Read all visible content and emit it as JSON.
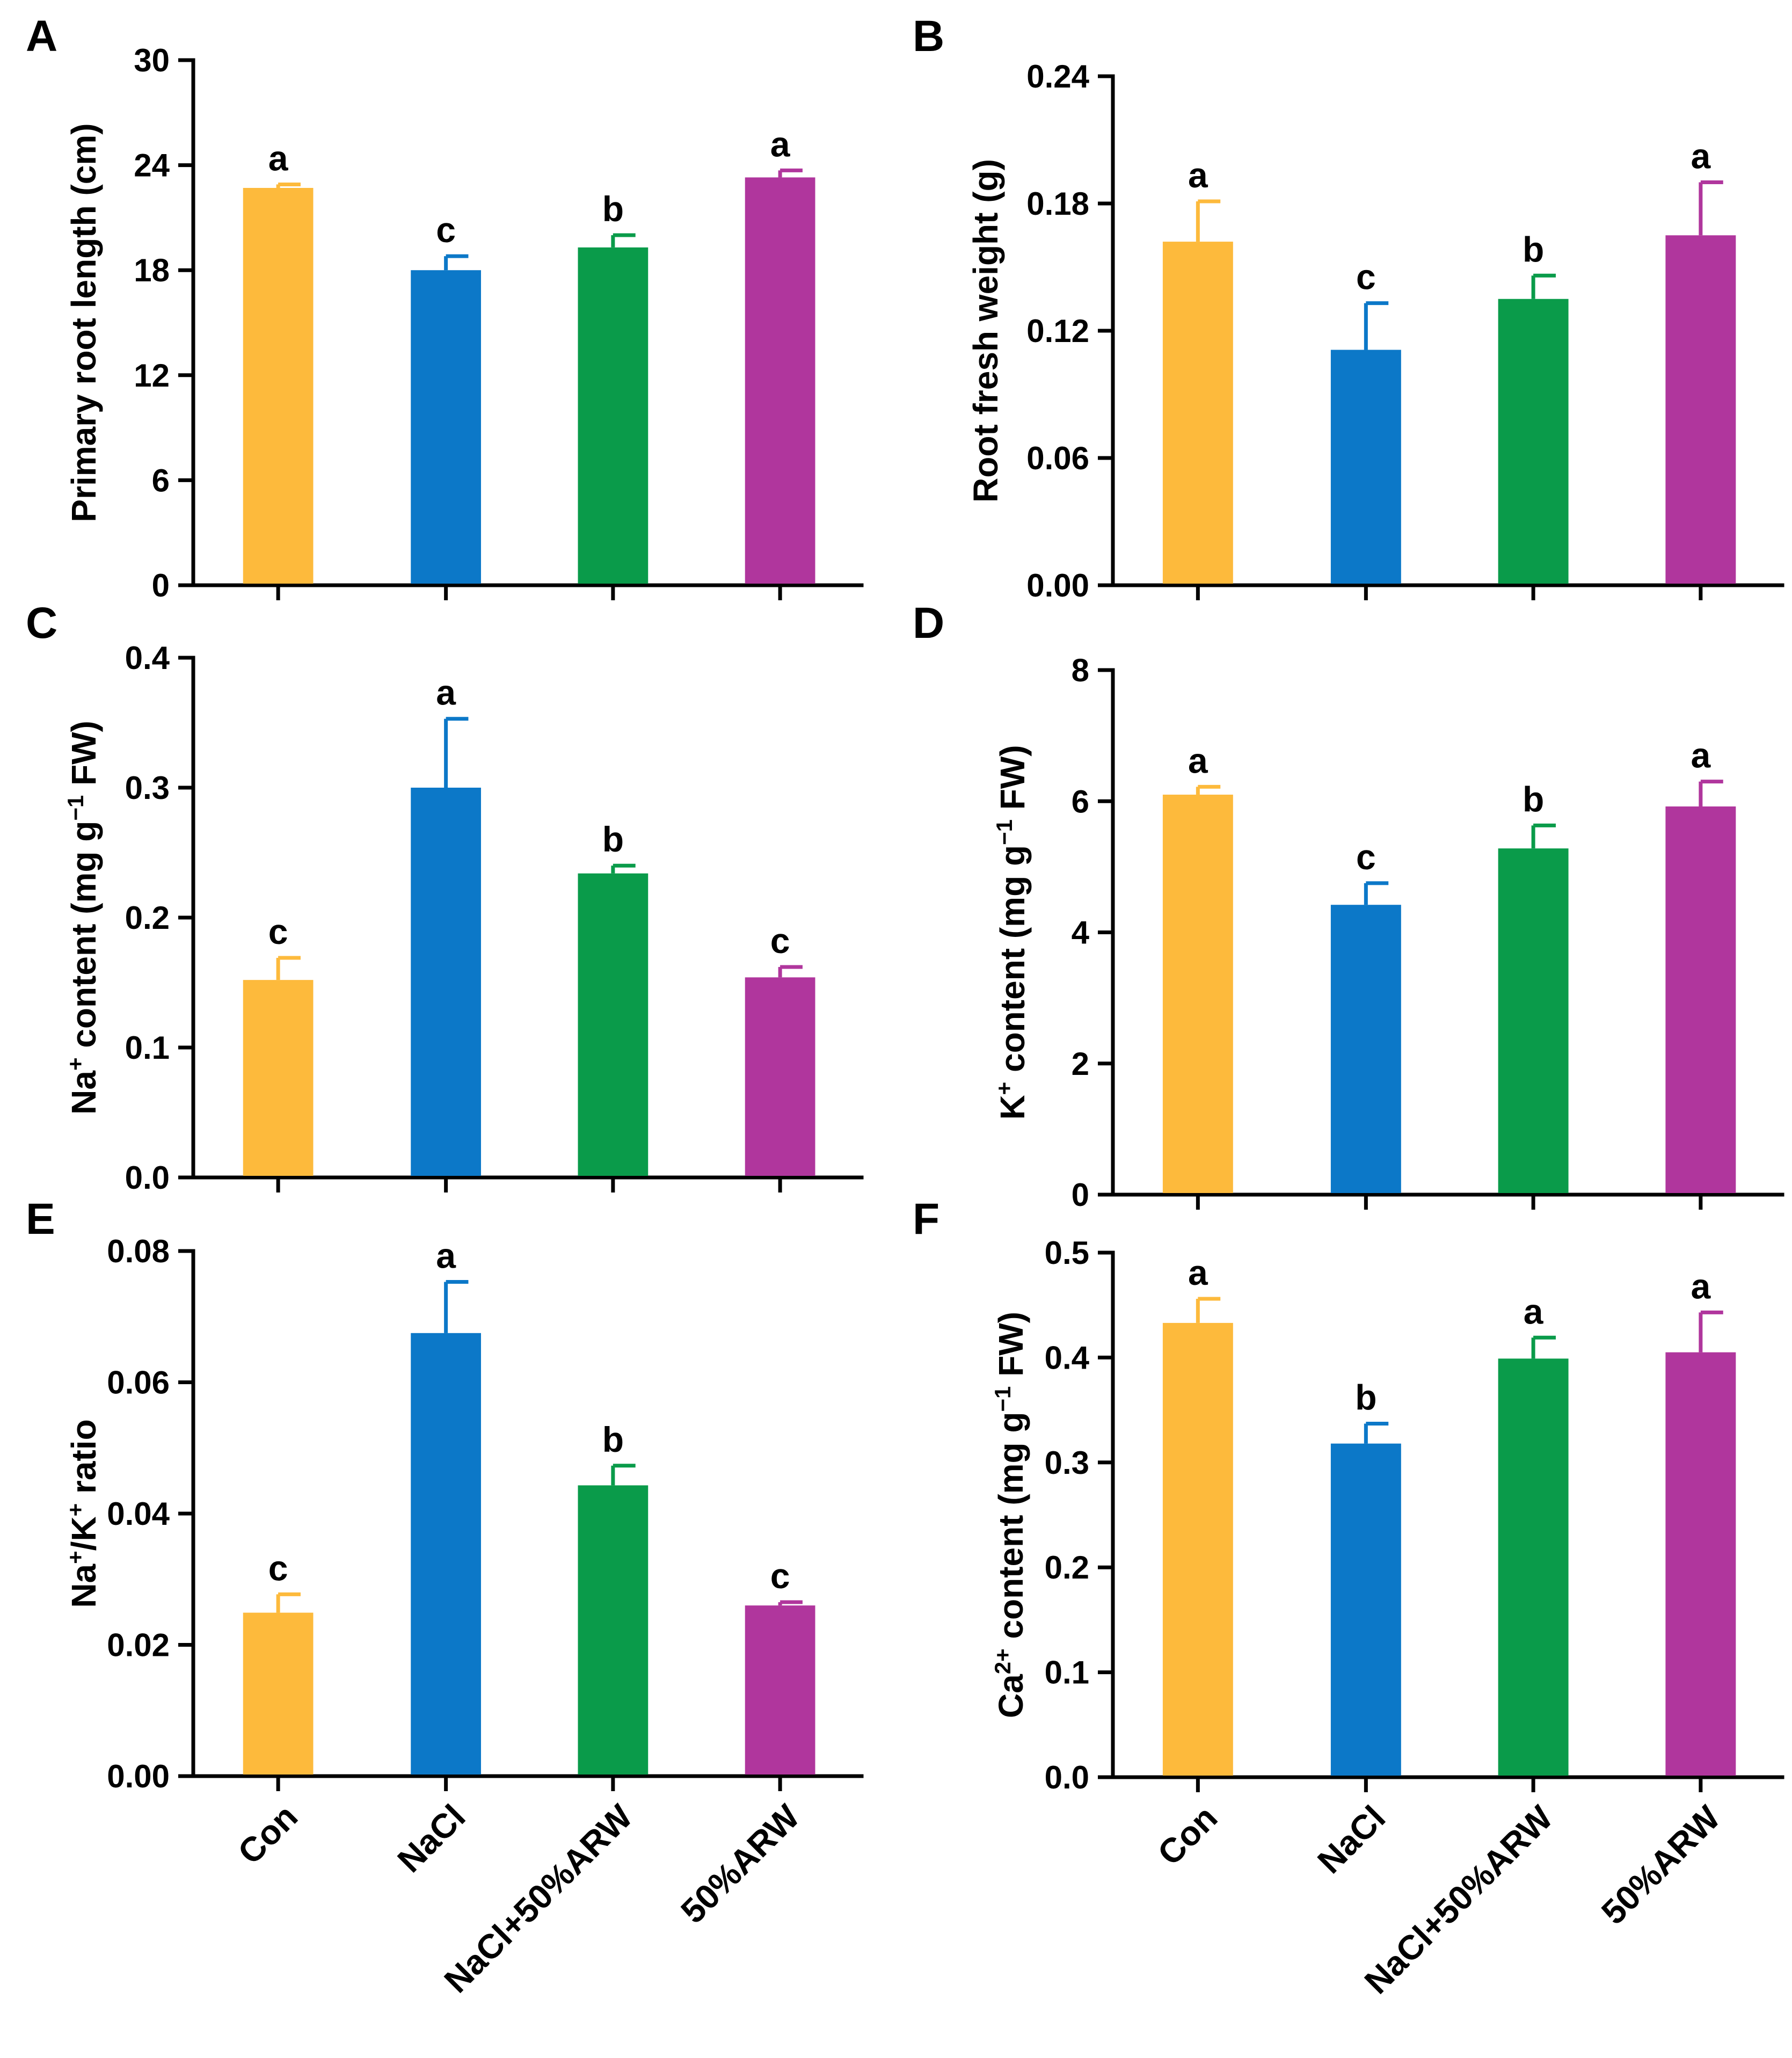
{
  "colors": {
    "Con": "#FDBA3C",
    "NaCl": "#0C78C8",
    "NaCl+50%ARW": "#0A9B4A",
    "50%ARW": "#B0369D",
    "axis": "#000000"
  },
  "chart_data": [
    {
      "panel": "A",
      "type": "bar",
      "categories": [
        "Con",
        "NaCl",
        "NaCl+50%ARW",
        "50%ARW"
      ],
      "values": [
        22.7,
        18.0,
        19.3,
        23.3
      ],
      "errors": [
        0.2,
        0.8,
        0.7,
        0.4
      ],
      "significance": [
        "a",
        "c",
        "b",
        "a"
      ],
      "ylabel": "Primary root length (cm)",
      "ylim": [
        0,
        30
      ],
      "yticks": [
        "0",
        "6",
        "12",
        "18",
        "24",
        "30"
      ]
    },
    {
      "panel": "B",
      "type": "bar",
      "categories": [
        "Con",
        "NaCl",
        "NaCl+50%ARW",
        "50%ARW"
      ],
      "values": [
        0.162,
        0.111,
        0.135,
        0.165
      ],
      "errors": [
        0.019,
        0.022,
        0.011,
        0.025
      ],
      "significance": [
        "a",
        "c",
        "b",
        "a"
      ],
      "ylabel": "Root fresh weight (g)",
      "ylim": [
        0,
        0.24
      ],
      "yticks": [
        "0.00",
        "0.06",
        "0.12",
        "0.18",
        "0.24"
      ]
    },
    {
      "panel": "C",
      "type": "bar",
      "categories": [
        "Con",
        "NaCl",
        "NaCl+50%ARW",
        "50%ARW"
      ],
      "values": [
        0.152,
        0.3,
        0.234,
        0.154
      ],
      "errors": [
        0.017,
        0.053,
        0.006,
        0.008
      ],
      "significance": [
        "c",
        "a",
        "b",
        "c"
      ],
      "ylabel": "Na+ content (mg g−1 FW)",
      "ylabel_parts": {
        "ion": "Na",
        "sup1": "+",
        "mid": "content (mg g",
        "sup2": "−1",
        "end": "FW)"
      },
      "ylim": [
        0,
        0.4
      ],
      "yticks": [
        "0.0",
        "0.1",
        "0.2",
        "0.3",
        "0.4"
      ]
    },
    {
      "panel": "D",
      "type": "bar",
      "categories": [
        "Con",
        "NaCl",
        "NaCl+50%ARW",
        "50%ARW"
      ],
      "values": [
        6.1,
        4.42,
        5.28,
        5.92
      ],
      "errors": [
        0.12,
        0.33,
        0.35,
        0.38
      ],
      "significance": [
        "a",
        "c",
        "b",
        "a"
      ],
      "ylabel": "K+ content (mg g−1 FW)",
      "ylabel_parts": {
        "ion": "K",
        "sup1": "+",
        "mid": "content (mg g",
        "sup2": "−1",
        "end": "FW)"
      },
      "ylim": [
        0,
        8
      ],
      "yticks": [
        "0",
        "2",
        "4",
        "6",
        "8"
      ]
    },
    {
      "panel": "E",
      "type": "bar",
      "categories": [
        "Con",
        "NaCl",
        "NaCl+50%ARW",
        "50%ARW"
      ],
      "values": [
        0.0249,
        0.0675,
        0.0443,
        0.026
      ],
      "errors": [
        0.0028,
        0.0078,
        0.003,
        0.0005
      ],
      "significance": [
        "c",
        "a",
        "b",
        "c"
      ],
      "ylabel": "Na+/K+ ratio",
      "ylabel_parts": {
        "a": "Na",
        "sup_a": "+",
        "b": "/K",
        "sup_b": "+",
        "c": "ratio"
      },
      "ylim": [
        0,
        0.08
      ],
      "yticks": [
        "0.00",
        "0.02",
        "0.04",
        "0.06",
        "0.08"
      ]
    },
    {
      "panel": "F",
      "type": "bar",
      "categories": [
        "Con",
        "NaCl",
        "NaCl+50%ARW",
        "50%ARW"
      ],
      "values": [
        0.433,
        0.318,
        0.399,
        0.405
      ],
      "errors": [
        0.023,
        0.019,
        0.02,
        0.038
      ],
      "significance": [
        "a",
        "b",
        "a",
        "a"
      ],
      "ylabel": "Ca2+ content (mg g−1 FW)",
      "ylabel_parts": {
        "ion": "Ca",
        "sup1": "2+",
        "mid": "content (mg g",
        "sup2": "−1",
        "end": "FW)"
      },
      "ylim": [
        0,
        0.5
      ],
      "yticks": [
        "0.0",
        "0.1",
        "0.2",
        "0.3",
        "0.4",
        "0.5"
      ]
    }
  ]
}
